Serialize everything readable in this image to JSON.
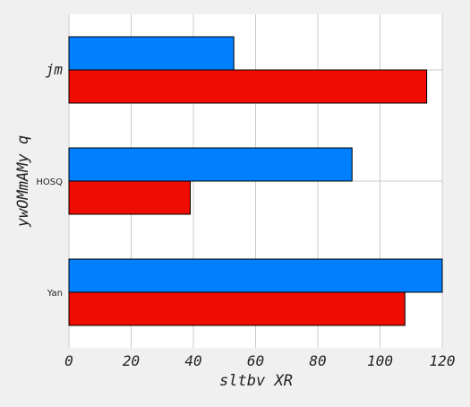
{
  "chart_data": {
    "type": "bar",
    "orientation": "horizontal",
    "title": "",
    "xlabel": "sltbv XR",
    "ylabel": "ywOMmAMy q",
    "categories": [
      "Yan",
      "HOSQ",
      "jm"
    ],
    "series": [
      {
        "color": "#f00c00",
        "values": [
          108,
          39,
          115
        ]
      },
      {
        "color": "#0080ff",
        "values": [
          120,
          91,
          53
        ]
      }
    ],
    "xlim": [
      0,
      120
    ],
    "xticks": [
      0,
      20,
      40,
      60,
      80,
      100,
      120
    ],
    "grid": true,
    "legend": "none"
  }
}
